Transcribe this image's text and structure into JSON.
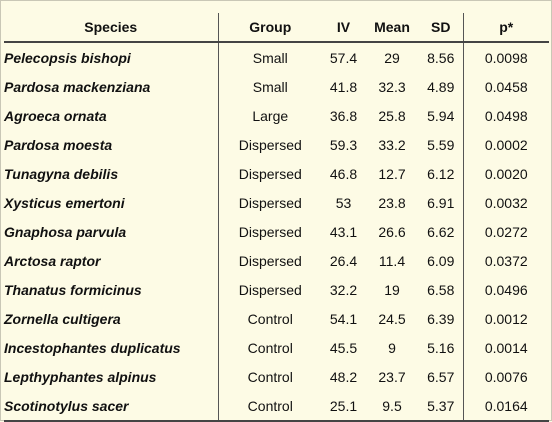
{
  "table": {
    "headers": {
      "species": "Species",
      "group": "Group",
      "iv": "IV",
      "mean": "Mean",
      "sd": "SD",
      "p": "p*"
    },
    "rows": [
      {
        "species": "Pelecopsis bishopi",
        "group": "Small",
        "iv": "57.4",
        "mean": "29",
        "sd": "8.56",
        "p": "0.0098"
      },
      {
        "species": "Pardosa mackenziana",
        "group": "Small",
        "iv": "41.8",
        "mean": "32.3",
        "sd": "4.89",
        "p": "0.0458"
      },
      {
        "species": "Agroeca ornata",
        "group": "Large",
        "iv": "36.8",
        "mean": "25.8",
        "sd": "5.94",
        "p": "0.0498"
      },
      {
        "species": "Pardosa moesta",
        "group": "Dispersed",
        "iv": "59.3",
        "mean": "33.2",
        "sd": "5.59",
        "p": "0.0002"
      },
      {
        "species": "Tunagyna debilis",
        "group": "Dispersed",
        "iv": "46.8",
        "mean": "12.7",
        "sd": "6.12",
        "p": "0.0020"
      },
      {
        "species": "Xysticus emertoni",
        "group": "Dispersed",
        "iv": "53",
        "mean": "23.8",
        "sd": "6.91",
        "p": "0.0032"
      },
      {
        "species": "Gnaphosa parvula",
        "group": "Dispersed",
        "iv": "43.1",
        "mean": "26.6",
        "sd": "6.62",
        "p": "0.0272"
      },
      {
        "species": "Arctosa raptor",
        "group": "Dispersed",
        "iv": "26.4",
        "mean": "11.4",
        "sd": "6.09",
        "p": "0.0372"
      },
      {
        "species": "Thanatus formicinus",
        "group": "Dispersed",
        "iv": "32.2",
        "mean": "19",
        "sd": "6.58",
        "p": "0.0496"
      },
      {
        "species": "Zornella cultigera",
        "group": "Control",
        "iv": "54.1",
        "mean": "24.5",
        "sd": "6.39",
        "p": "0.0012"
      },
      {
        "species": "Incestophantes duplicatus",
        "group": "Control",
        "iv": "45.5",
        "mean": "9",
        "sd": "5.16",
        "p": "0.0014"
      },
      {
        "species": "Lepthyphantes alpinus",
        "group": "Control",
        "iv": "48.2",
        "mean": "23.7",
        "sd": "6.57",
        "p": "0.0076"
      },
      {
        "species": "Scotinotylus sacer",
        "group": "Control",
        "iv": "25.1",
        "mean": "9.5",
        "sd": "5.37",
        "p": "0.0164"
      }
    ]
  },
  "colors": {
    "background": "#fdfbe5",
    "rule": "#444444"
  }
}
